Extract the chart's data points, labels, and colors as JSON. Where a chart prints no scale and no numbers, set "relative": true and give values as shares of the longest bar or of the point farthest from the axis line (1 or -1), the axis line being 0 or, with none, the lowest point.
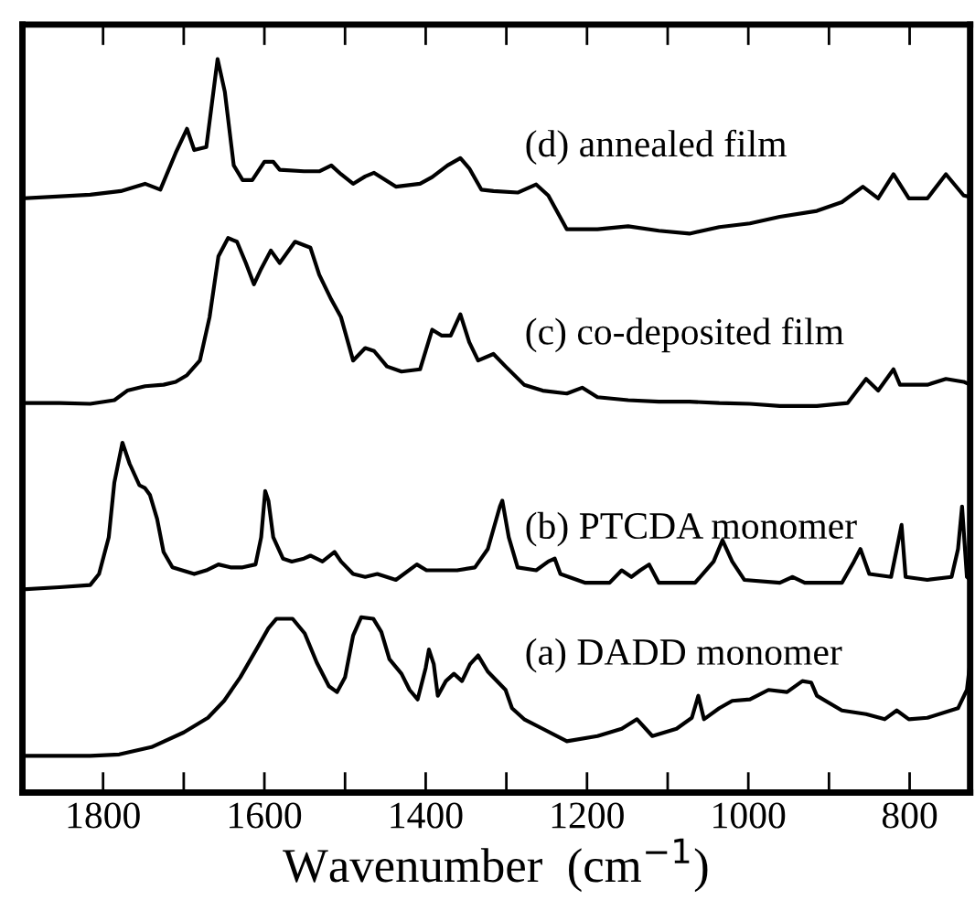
{
  "chart_data": {
    "type": "line",
    "relative": true,
    "xlabel": "Wavenumber  (cm$^{−1}$)",
    "xlim": [
      1900,
      725
    ],
    "xticks": [
      1800,
      {
        "value": 1700,
        "label": null
      },
      1600,
      {
        "value": 1500,
        "label": null
      },
      1400,
      {
        "value": 1300,
        "label": null
      },
      1200,
      {
        "value": 1100,
        "label": null
      },
      1000,
      {
        "value": 900,
        "label": null
      },
      800
    ],
    "tick_labels": "x",
    "grid": false,
    "legend": false,
    "marker": "none",
    "line_style": "solid",
    "series": [
      {
        "name": "(d) annealed film",
        "color": "#000000",
        "x": [
          1899,
          1816,
          1778,
          1748,
          1729,
          1710,
          1696,
          1687,
          1672,
          1658,
          1649,
          1638,
          1627,
          1615,
          1600,
          1589,
          1581,
          1551,
          1532,
          1517,
          1505,
          1490,
          1475,
          1464,
          1437,
          1407,
          1392,
          1373,
          1357,
          1346,
          1331,
          1316,
          1286,
          1263,
          1248,
          1225,
          1187,
          1149,
          1111,
          1073,
          1036,
          998,
          961,
          915,
          884,
          858,
          839,
          820,
          801,
          778,
          755,
          733,
          725
        ],
        "values": [
          0.81,
          0.815,
          0.82,
          0.83,
          0.822,
          0.872,
          0.905,
          0.876,
          0.88,
          1.0,
          0.955,
          0.855,
          0.835,
          0.835,
          0.86,
          0.86,
          0.849,
          0.847,
          0.847,
          0.855,
          0.843,
          0.83,
          0.84,
          0.845,
          0.826,
          0.83,
          0.839,
          0.855,
          0.865,
          0.851,
          0.822,
          0.82,
          0.818,
          0.829,
          0.814,
          0.768,
          0.768,
          0.772,
          0.766,
          0.762,
          0.771,
          0.776,
          0.785,
          0.793,
          0.805,
          0.826,
          0.81,
          0.843,
          0.81,
          0.81,
          0.843,
          0.814,
          0.812
        ]
      },
      {
        "name": "(c) co-deposited film",
        "color": "#000000",
        "x": [
          1899,
          1854,
          1816,
          1786,
          1770,
          1748,
          1725,
          1710,
          1696,
          1680,
          1668,
          1657,
          1645,
          1634,
          1623,
          1613,
          1604,
          1592,
          1581,
          1562,
          1543,
          1532,
          1517,
          1505,
          1490,
          1475,
          1464,
          1448,
          1430,
          1407,
          1392,
          1380,
          1369,
          1357,
          1346,
          1335,
          1316,
          1301,
          1278,
          1255,
          1225,
          1206,
          1187,
          1149,
          1111,
          1073,
          1036,
          998,
          961,
          915,
          877,
          854,
          839,
          820,
          812,
          778,
          755,
          733,
          725
        ],
        "values": [
          0.531,
          0.531,
          0.53,
          0.535,
          0.548,
          0.554,
          0.556,
          0.56,
          0.569,
          0.589,
          0.648,
          0.731,
          0.756,
          0.751,
          0.722,
          0.693,
          0.714,
          0.739,
          0.722,
          0.751,
          0.743,
          0.706,
          0.672,
          0.648,
          0.589,
          0.606,
          0.602,
          0.581,
          0.574,
          0.577,
          0.631,
          0.623,
          0.623,
          0.652,
          0.614,
          0.589,
          0.598,
          0.581,
          0.556,
          0.548,
          0.544,
          0.552,
          0.539,
          0.535,
          0.533,
          0.533,
          0.531,
          0.53,
          0.527,
          0.527,
          0.531,
          0.564,
          0.548,
          0.577,
          0.556,
          0.556,
          0.564,
          0.56,
          0.556
        ]
      },
      {
        "name": "(b) PTCDA monomer",
        "color": "#000000",
        "x": [
          1899,
          1854,
          1816,
          1805,
          1793,
          1786,
          1776,
          1767,
          1755,
          1748,
          1742,
          1733,
          1725,
          1714,
          1702,
          1687,
          1672,
          1657,
          1642,
          1627,
          1611,
          1604,
          1599,
          1595,
          1589,
          1577,
          1566,
          1551,
          1543,
          1528,
          1513,
          1505,
          1490,
          1475,
          1460,
          1437,
          1411,
          1399,
          1361,
          1339,
          1323,
          1308,
          1305,
          1297,
          1286,
          1263,
          1248,
          1240,
          1233,
          1202,
          1172,
          1157,
          1145,
          1134,
          1123,
          1111,
          1066,
          1043,
          1032,
          1020,
          1005,
          961,
          945,
          930,
          884,
          869,
          861,
          850,
          823,
          816,
          810,
          805,
          778,
          748,
          740,
          735,
          729,
          725
        ],
        "values": [
          0.277,
          0.28,
          0.283,
          0.298,
          0.348,
          0.423,
          0.477,
          0.448,
          0.419,
          0.415,
          0.406,
          0.373,
          0.328,
          0.307,
          0.303,
          0.298,
          0.303,
          0.311,
          0.307,
          0.307,
          0.311,
          0.348,
          0.411,
          0.398,
          0.348,
          0.319,
          0.315,
          0.319,
          0.323,
          0.315,
          0.328,
          0.315,
          0.298,
          0.294,
          0.298,
          0.29,
          0.311,
          0.303,
          0.303,
          0.307,
          0.332,
          0.39,
          0.398,
          0.348,
          0.307,
          0.303,
          0.315,
          0.319,
          0.298,
          0.286,
          0.286,
          0.303,
          0.294,
          0.303,
          0.311,
          0.286,
          0.286,
          0.315,
          0.344,
          0.315,
          0.29,
          0.286,
          0.294,
          0.286,
          0.286,
          0.315,
          0.332,
          0.298,
          0.294,
          0.332,
          0.365,
          0.294,
          0.29,
          0.294,
          0.332,
          0.39,
          0.294,
          0.29
        ]
      },
      {
        "name": "(a) DADD monomer",
        "color": "#000000",
        "x": [
          1899,
          1816,
          1780,
          1740,
          1700,
          1670,
          1650,
          1630,
          1610,
          1595,
          1585,
          1565,
          1550,
          1535,
          1520,
          1510,
          1500,
          1490,
          1480,
          1465,
          1455,
          1445,
          1430,
          1420,
          1410,
          1400,
          1396,
          1390,
          1385,
          1375,
          1365,
          1355,
          1345,
          1335,
          1323,
          1301,
          1293,
          1278,
          1255,
          1225,
          1187,
          1157,
          1138,
          1119,
          1089,
          1070,
          1062,
          1055,
          1036,
          1020,
          998,
          975,
          952,
          933,
          922,
          915,
          884,
          854,
          831,
          816,
          801,
          778,
          740,
          729,
          725
        ],
        "values": [
          0.05,
          0.05,
          0.052,
          0.062,
          0.082,
          0.102,
          0.125,
          0.157,
          0.195,
          0.224,
          0.237,
          0.237,
          0.217,
          0.177,
          0.145,
          0.137,
          0.157,
          0.214,
          0.239,
          0.237,
          0.219,
          0.182,
          0.162,
          0.14,
          0.127,
          0.17,
          0.195,
          0.175,
          0.132,
          0.152,
          0.162,
          0.152,
          0.175,
          0.187,
          0.165,
          0.14,
          0.115,
          0.1,
          0.087,
          0.07,
          0.077,
          0.087,
          0.1,
          0.077,
          0.087,
          0.102,
          0.132,
          0.1,
          0.115,
          0.125,
          0.127,
          0.14,
          0.137,
          0.152,
          0.15,
          0.132,
          0.112,
          0.107,
          0.1,
          0.112,
          0.1,
          0.102,
          0.115,
          0.14,
          0.177
        ]
      }
    ]
  }
}
